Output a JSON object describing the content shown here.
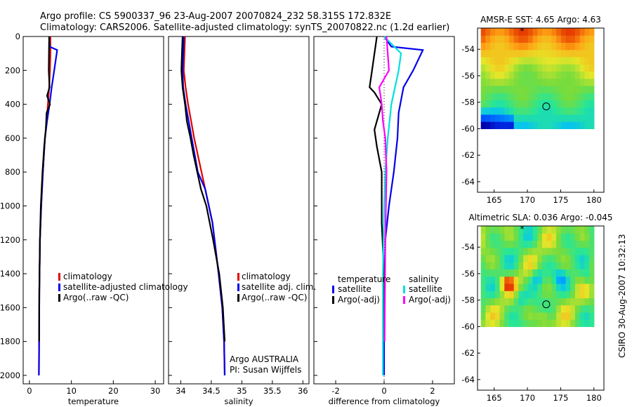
{
  "header": {
    "line1": "Argo profile: CS 5900337_96 23-Aug-2007 20070824_232 58.315S 172.832E",
    "line2": "Climatology: CARS2006. Satellite-adjusted climatology: synTS_20070822.nc (1.2d earlier)"
  },
  "side_text": "CSIRO 30-Aug-2007 10:32:13",
  "colors": {
    "climatology": "#e00000",
    "satellite": "#0000ee",
    "argo": "#000000",
    "sat_cyan": "#00e0e0",
    "argo_adj": "#ff00ff"
  },
  "chart_data": [
    {
      "type": "line",
      "xlabel": "temperature",
      "xlim": [
        -1.5,
        32
      ],
      "xticks": [
        0,
        10,
        20,
        30
      ],
      "ylim": [
        2050,
        0
      ],
      "yticks": [
        0,
        200,
        400,
        600,
        800,
        1000,
        1200,
        1400,
        1600,
        1800,
        2000
      ],
      "legend": [
        "climatology",
        "satellite-adjusted climatology",
        "Argo(..raw -QC)"
      ],
      "series": [
        {
          "name": "climatology",
          "color": "#e00000",
          "x": [
            5.0,
            5.0,
            4.9,
            4.7,
            4.4,
            4.1,
            3.7,
            3.2,
            2.8,
            2.5,
            2.35,
            2.3,
            2.25
          ],
          "y": [
            0,
            100,
            200,
            300,
            400,
            500,
            600,
            800,
            1000,
            1200,
            1500,
            1800,
            2000
          ]
        },
        {
          "name": "satellite-adjusted climatology",
          "color": "#0000ee",
          "x": [
            4.7,
            4.8,
            6.6,
            5.9,
            5.3,
            4.8,
            4.2,
            3.7,
            3.2,
            2.8,
            2.5,
            2.35,
            2.3,
            2.25
          ],
          "y": [
            0,
            60,
            80,
            200,
            300,
            400,
            500,
            600,
            800,
            1000,
            1200,
            1500,
            1800,
            2000
          ]
        },
        {
          "name": "Argo(..raw -QC)",
          "color": "#000000",
          "x": [
            4.7,
            4.6,
            4.8,
            4.2,
            4.9,
            4.1,
            3.9,
            3.5,
            3.1,
            2.7,
            2.5,
            2.35,
            2.3
          ],
          "y": [
            0,
            200,
            300,
            350,
            400,
            450,
            550,
            650,
            800,
            1000,
            1200,
            1500,
            1800
          ]
        }
      ]
    },
    {
      "type": "line",
      "xlabel": "salinity",
      "xlim": [
        33.8,
        36.1
      ],
      "xticks": [
        34,
        34.5,
        35,
        35.5,
        36
      ],
      "xtick_labels": [
        "34",
        "34.5",
        "35",
        "35.5",
        "36"
      ],
      "ylim": [
        2050,
        0
      ],
      "legend": [
        "climatology",
        "satellite adj. clim.",
        "Argo(..raw -QC)"
      ],
      "annotation": [
        "Argo AUSTRALIA",
        "PI: Susan Wijffels"
      ],
      "series": [
        {
          "name": "climatology",
          "color": "#e00000",
          "x": [
            34.07,
            34.06,
            34.05,
            34.08,
            34.12,
            34.17,
            34.22,
            34.28,
            34.4,
            34.52,
            34.62,
            34.68,
            34.71,
            34.72
          ],
          "y": [
            0,
            100,
            200,
            300,
            400,
            500,
            600,
            700,
            900,
            1100,
            1400,
            1600,
            1800,
            2000
          ]
        },
        {
          "name": "satellite adj. clim.",
          "color": "#0000ee",
          "x": [
            34.05,
            34.04,
            34.03,
            34.04,
            34.08,
            34.13,
            34.18,
            34.23,
            34.28,
            34.4,
            34.52,
            34.62,
            34.68,
            34.71,
            34.72
          ],
          "y": [
            0,
            100,
            200,
            300,
            400,
            500,
            600,
            700,
            800,
            900,
            1100,
            1400,
            1600,
            1800,
            2000
          ]
        },
        {
          "name": "Argo(..raw -QC)",
          "color": "#000000",
          "x": [
            34.03,
            34.02,
            34.01,
            34.03,
            34.07,
            34.1,
            34.16,
            34.21,
            34.27,
            34.33,
            34.42,
            34.53,
            34.63,
            34.69,
            34.72
          ],
          "y": [
            0,
            100,
            200,
            300,
            400,
            500,
            600,
            700,
            800,
            900,
            1000,
            1200,
            1400,
            1600,
            1800
          ]
        }
      ]
    },
    {
      "type": "line",
      "xlabel": "difference from climatology",
      "xlim": [
        -2.9,
        2.9
      ],
      "xticks": [
        -2,
        0,
        2
      ],
      "ylim": [
        2050,
        0
      ],
      "legend_headers": [
        "temperature",
        "salinity"
      ],
      "legend": [
        "satellite",
        "Argo(-adj)",
        "satellite",
        "Argo(-adj)"
      ],
      "series": [
        {
          "name": "satellite",
          "color": "#0000ee",
          "x": [
            0.0,
            0.3,
            1.6,
            1.2,
            0.8,
            0.6,
            0.55,
            0.4,
            0.2,
            0.05,
            0.0,
            0.0
          ],
          "y": [
            0,
            60,
            80,
            200,
            300,
            450,
            600,
            800,
            1000,
            1200,
            1600,
            2000
          ]
        },
        {
          "name": "Argo(-adj)",
          "color": "#000000",
          "x": [
            -0.3,
            -0.5,
            -0.6,
            -0.4,
            -0.1,
            -0.2,
            -0.4,
            -0.3,
            -0.1,
            -0.1,
            0.0,
            0.0
          ],
          "y": [
            0,
            200,
            300,
            330,
            400,
            450,
            550,
            650,
            800,
            1100,
            1400,
            1800
          ]
        },
        {
          "name": "satellite",
          "color": "#00e0e0",
          "x": [
            0.0,
            0.7,
            0.6,
            0.3,
            0.15,
            0.05,
            0.0,
            -0.05,
            -0.05
          ],
          "y": [
            0,
            100,
            200,
            400,
            600,
            800,
            1000,
            1400,
            2000
          ]
        },
        {
          "name": "Argo(-adj)",
          "color": "#ff00ff",
          "x": [
            0.1,
            0.2,
            -0.2,
            -0.1,
            -0.05,
            0.05,
            0.1,
            0.05,
            0.02
          ],
          "y": [
            0,
            200,
            300,
            400,
            500,
            600,
            800,
            1200,
            1800
          ]
        }
      ]
    },
    {
      "type": "heatmap",
      "title": "AMSR-E SST: 4.65 Argo: 4.63",
      "xlim": [
        162.5,
        181.5
      ],
      "ylim": [
        -64.8,
        -52.4
      ],
      "xticks": [
        165,
        170,
        175,
        180
      ],
      "yticks": [
        -54,
        -56,
        -58,
        -60,
        -62,
        -64
      ],
      "ytick_labels": [
        "-54",
        "-56",
        "-58",
        "-60",
        "-62",
        "-64"
      ],
      "data_extent": {
        "lon": [
          163,
          180
        ],
        "lat": [
          -60,
          -52.4
        ]
      },
      "argo_position": {
        "lon": 172.832,
        "lat": -58.315
      }
    },
    {
      "type": "heatmap",
      "title": "Altimetric SLA: 0.036 Argo: -0.045",
      "xlim": [
        162.5,
        181.5
      ],
      "ylim": [
        -64.8,
        -52.4
      ],
      "xticks": [
        165,
        170,
        175,
        180
      ],
      "yticks": [
        -54,
        -56,
        -58,
        -60,
        -62,
        -64
      ],
      "ytick_labels": [
        "-54",
        "-56",
        "-58",
        "-60",
        "-62",
        "-64"
      ],
      "data_extent": {
        "lon": [
          163,
          180
        ],
        "lat": [
          -60,
          -52.4
        ]
      },
      "argo_position": {
        "lon": 172.832,
        "lat": -58.315
      }
    }
  ]
}
